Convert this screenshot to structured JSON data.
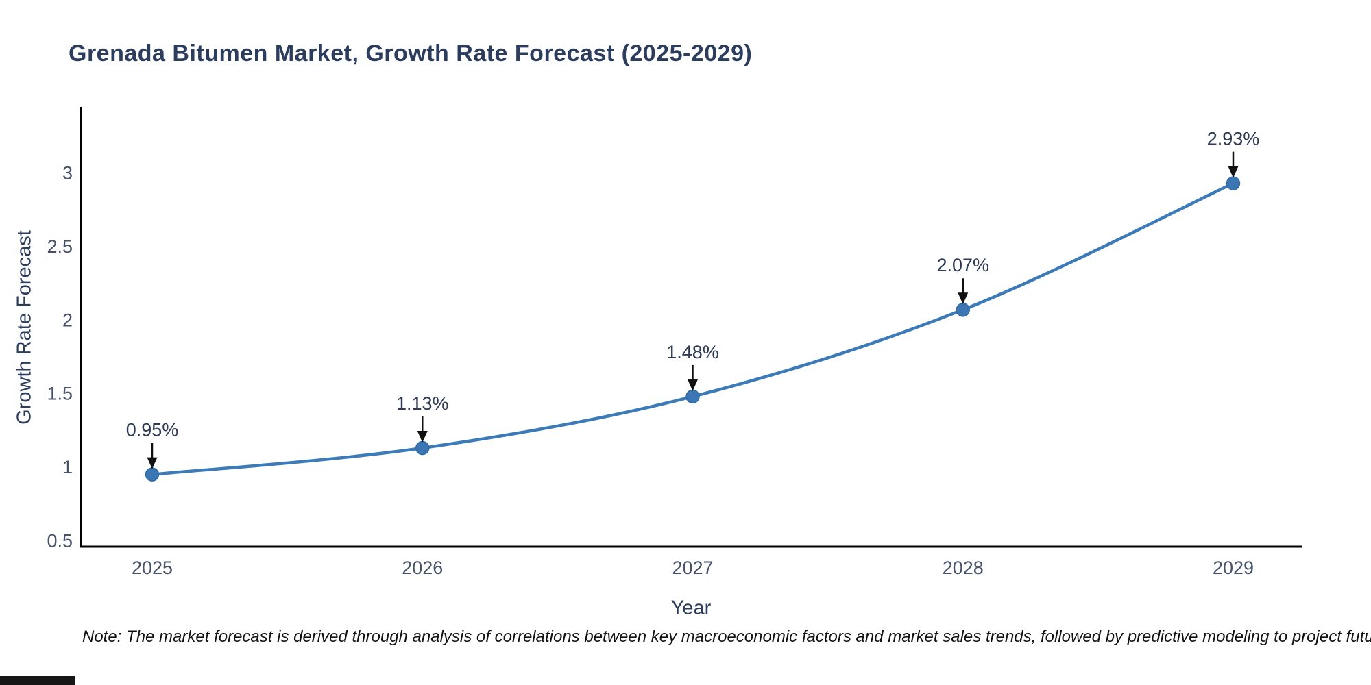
{
  "title": "Grenada Bitumen Market, Growth Rate Forecast (2025-2029)",
  "note": "Note: The market forecast is derived through analysis of correlations between key macroeconomic factors and market sales trends, followed by predictive modeling to project future sales",
  "chart_data": {
    "type": "line",
    "title": "Grenada Bitumen Market, Growth Rate Forecast (2025-2029)",
    "xlabel": "Year",
    "ylabel": "Growth Rate Forecast",
    "x": [
      2025,
      2026,
      2027,
      2028,
      2029
    ],
    "values": [
      0.95,
      1.13,
      1.48,
      2.07,
      2.93
    ],
    "point_labels": [
      "0.95%",
      "1.13%",
      "1.48%",
      "2.07%",
      "2.93%"
    ],
    "yticks": [
      0.5,
      1,
      1.5,
      2,
      2.5,
      3
    ],
    "ylim": [
      0.45,
      3.45
    ],
    "grid": false,
    "legend": "none",
    "line_color": "#3d7ab8",
    "marker_color": "#3c77b3",
    "marker_edge_color": "#2f6aa5",
    "axis_color": "#000000",
    "tick_label_color": "#47526b",
    "annotation_color": "#2e3a55",
    "arrow_color": "#111111"
  }
}
